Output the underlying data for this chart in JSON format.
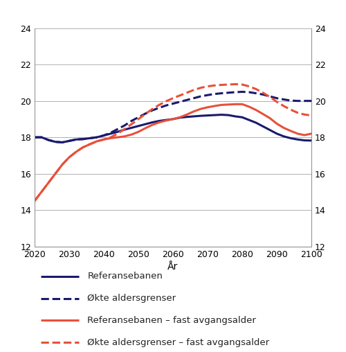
{
  "xlabel": "År",
  "ylim": [
    12,
    24
  ],
  "xlim": [
    2020,
    2100
  ],
  "yticks": [
    12,
    14,
    16,
    18,
    20,
    22,
    24
  ],
  "xticks": [
    2020,
    2030,
    2040,
    2050,
    2060,
    2070,
    2080,
    2090,
    2100
  ],
  "background_color": "#ffffff",
  "grid_color": "#b0b0b0",
  "series": [
    {
      "key": "referansebanen",
      "label": "Referansebanen",
      "color": "#1a1a6e",
      "linestyle": "solid",
      "linewidth": 2.2,
      "x": [
        2020,
        2022,
        2024,
        2026,
        2028,
        2030,
        2032,
        2034,
        2036,
        2038,
        2040,
        2042,
        2044,
        2046,
        2048,
        2050,
        2052,
        2054,
        2056,
        2058,
        2060,
        2062,
        2064,
        2066,
        2068,
        2070,
        2072,
        2074,
        2076,
        2078,
        2080,
        2082,
        2084,
        2086,
        2088,
        2090,
        2092,
        2094,
        2096,
        2098,
        2100
      ],
      "y": [
        18.0,
        18.0,
        17.85,
        17.75,
        17.72,
        17.8,
        17.88,
        17.9,
        17.95,
        18.0,
        18.1,
        18.2,
        18.3,
        18.42,
        18.52,
        18.62,
        18.72,
        18.82,
        18.9,
        18.95,
        19.0,
        19.08,
        19.12,
        19.15,
        19.18,
        19.2,
        19.22,
        19.24,
        19.22,
        19.15,
        19.1,
        18.95,
        18.8,
        18.6,
        18.4,
        18.2,
        18.05,
        17.95,
        17.88,
        17.83,
        17.82
      ]
    },
    {
      "key": "okte_aldersgrenser",
      "label": "Økte aldersgrenser",
      "color": "#1a1a6e",
      "linestyle": "dashed",
      "linewidth": 2.2,
      "x": [
        2020,
        2022,
        2024,
        2026,
        2028,
        2030,
        2032,
        2034,
        2036,
        2038,
        2040,
        2042,
        2044,
        2046,
        2048,
        2050,
        2052,
        2054,
        2056,
        2058,
        2060,
        2062,
        2064,
        2066,
        2068,
        2070,
        2072,
        2074,
        2076,
        2078,
        2080,
        2082,
        2084,
        2086,
        2088,
        2090,
        2092,
        2094,
        2096,
        2098,
        2100
      ],
      "y": [
        18.0,
        18.0,
        17.85,
        17.75,
        17.72,
        17.8,
        17.88,
        17.9,
        17.95,
        18.0,
        18.1,
        18.25,
        18.45,
        18.65,
        18.9,
        19.1,
        19.3,
        19.48,
        19.62,
        19.75,
        19.85,
        19.95,
        20.05,
        20.15,
        20.25,
        20.32,
        20.38,
        20.42,
        20.45,
        20.48,
        20.5,
        20.48,
        20.42,
        20.35,
        20.25,
        20.15,
        20.08,
        20.02,
        20.0,
        20.0,
        20.0
      ]
    },
    {
      "key": "referansebanen_fast",
      "label": "Referansebanen – fast avgangsalder",
      "color": "#e8503a",
      "linestyle": "solid",
      "linewidth": 2.2,
      "x": [
        2020,
        2022,
        2024,
        2026,
        2028,
        2030,
        2032,
        2034,
        2036,
        2038,
        2040,
        2042,
        2044,
        2046,
        2048,
        2050,
        2052,
        2054,
        2056,
        2058,
        2060,
        2062,
        2064,
        2066,
        2068,
        2070,
        2072,
        2074,
        2076,
        2078,
        2080,
        2082,
        2084,
        2086,
        2088,
        2090,
        2092,
        2094,
        2096,
        2098,
        2100
      ],
      "y": [
        14.5,
        15.0,
        15.5,
        16.0,
        16.5,
        16.9,
        17.2,
        17.45,
        17.62,
        17.78,
        17.88,
        17.95,
        18.0,
        18.05,
        18.15,
        18.3,
        18.5,
        18.68,
        18.82,
        18.92,
        19.0,
        19.1,
        19.25,
        19.42,
        19.56,
        19.65,
        19.72,
        19.78,
        19.8,
        19.82,
        19.82,
        19.68,
        19.5,
        19.28,
        19.05,
        18.75,
        18.52,
        18.35,
        18.2,
        18.12,
        18.2
      ]
    },
    {
      "key": "okte_aldersgrenser_fast",
      "label": "Økte aldersgrenser – fast avgangsalder",
      "color": "#e8503a",
      "linestyle": "dashed",
      "linewidth": 2.2,
      "x": [
        2020,
        2022,
        2024,
        2026,
        2028,
        2030,
        2032,
        2034,
        2036,
        2038,
        2040,
        2042,
        2044,
        2046,
        2048,
        2050,
        2052,
        2054,
        2056,
        2058,
        2060,
        2062,
        2064,
        2066,
        2068,
        2070,
        2072,
        2074,
        2076,
        2078,
        2080,
        2082,
        2084,
        2086,
        2088,
        2090,
        2092,
        2094,
        2096,
        2098,
        2100
      ],
      "y": [
        14.5,
        15.0,
        15.5,
        16.0,
        16.5,
        16.9,
        17.2,
        17.45,
        17.62,
        17.78,
        17.88,
        18.0,
        18.2,
        18.45,
        18.72,
        19.0,
        19.28,
        19.55,
        19.78,
        19.98,
        20.15,
        20.3,
        20.45,
        20.6,
        20.72,
        20.8,
        20.85,
        20.88,
        20.9,
        20.92,
        20.9,
        20.8,
        20.65,
        20.45,
        20.22,
        19.95,
        19.72,
        19.52,
        19.35,
        19.25,
        19.2
      ]
    }
  ],
  "legend_entries": [
    {
      "label": "Referansebanen",
      "color": "#1a1a6e",
      "linestyle": "solid"
    },
    {
      "label": "Økte aldersgrenser",
      "color": "#1a1a6e",
      "linestyle": "dashed"
    },
    {
      "label": "Referansebanen – fast avgangsalder",
      "color": "#e8503a",
      "linestyle": "solid"
    },
    {
      "label": "Økte aldersgrenser – fast avgangsalder",
      "color": "#e8503a",
      "linestyle": "dashed"
    }
  ]
}
